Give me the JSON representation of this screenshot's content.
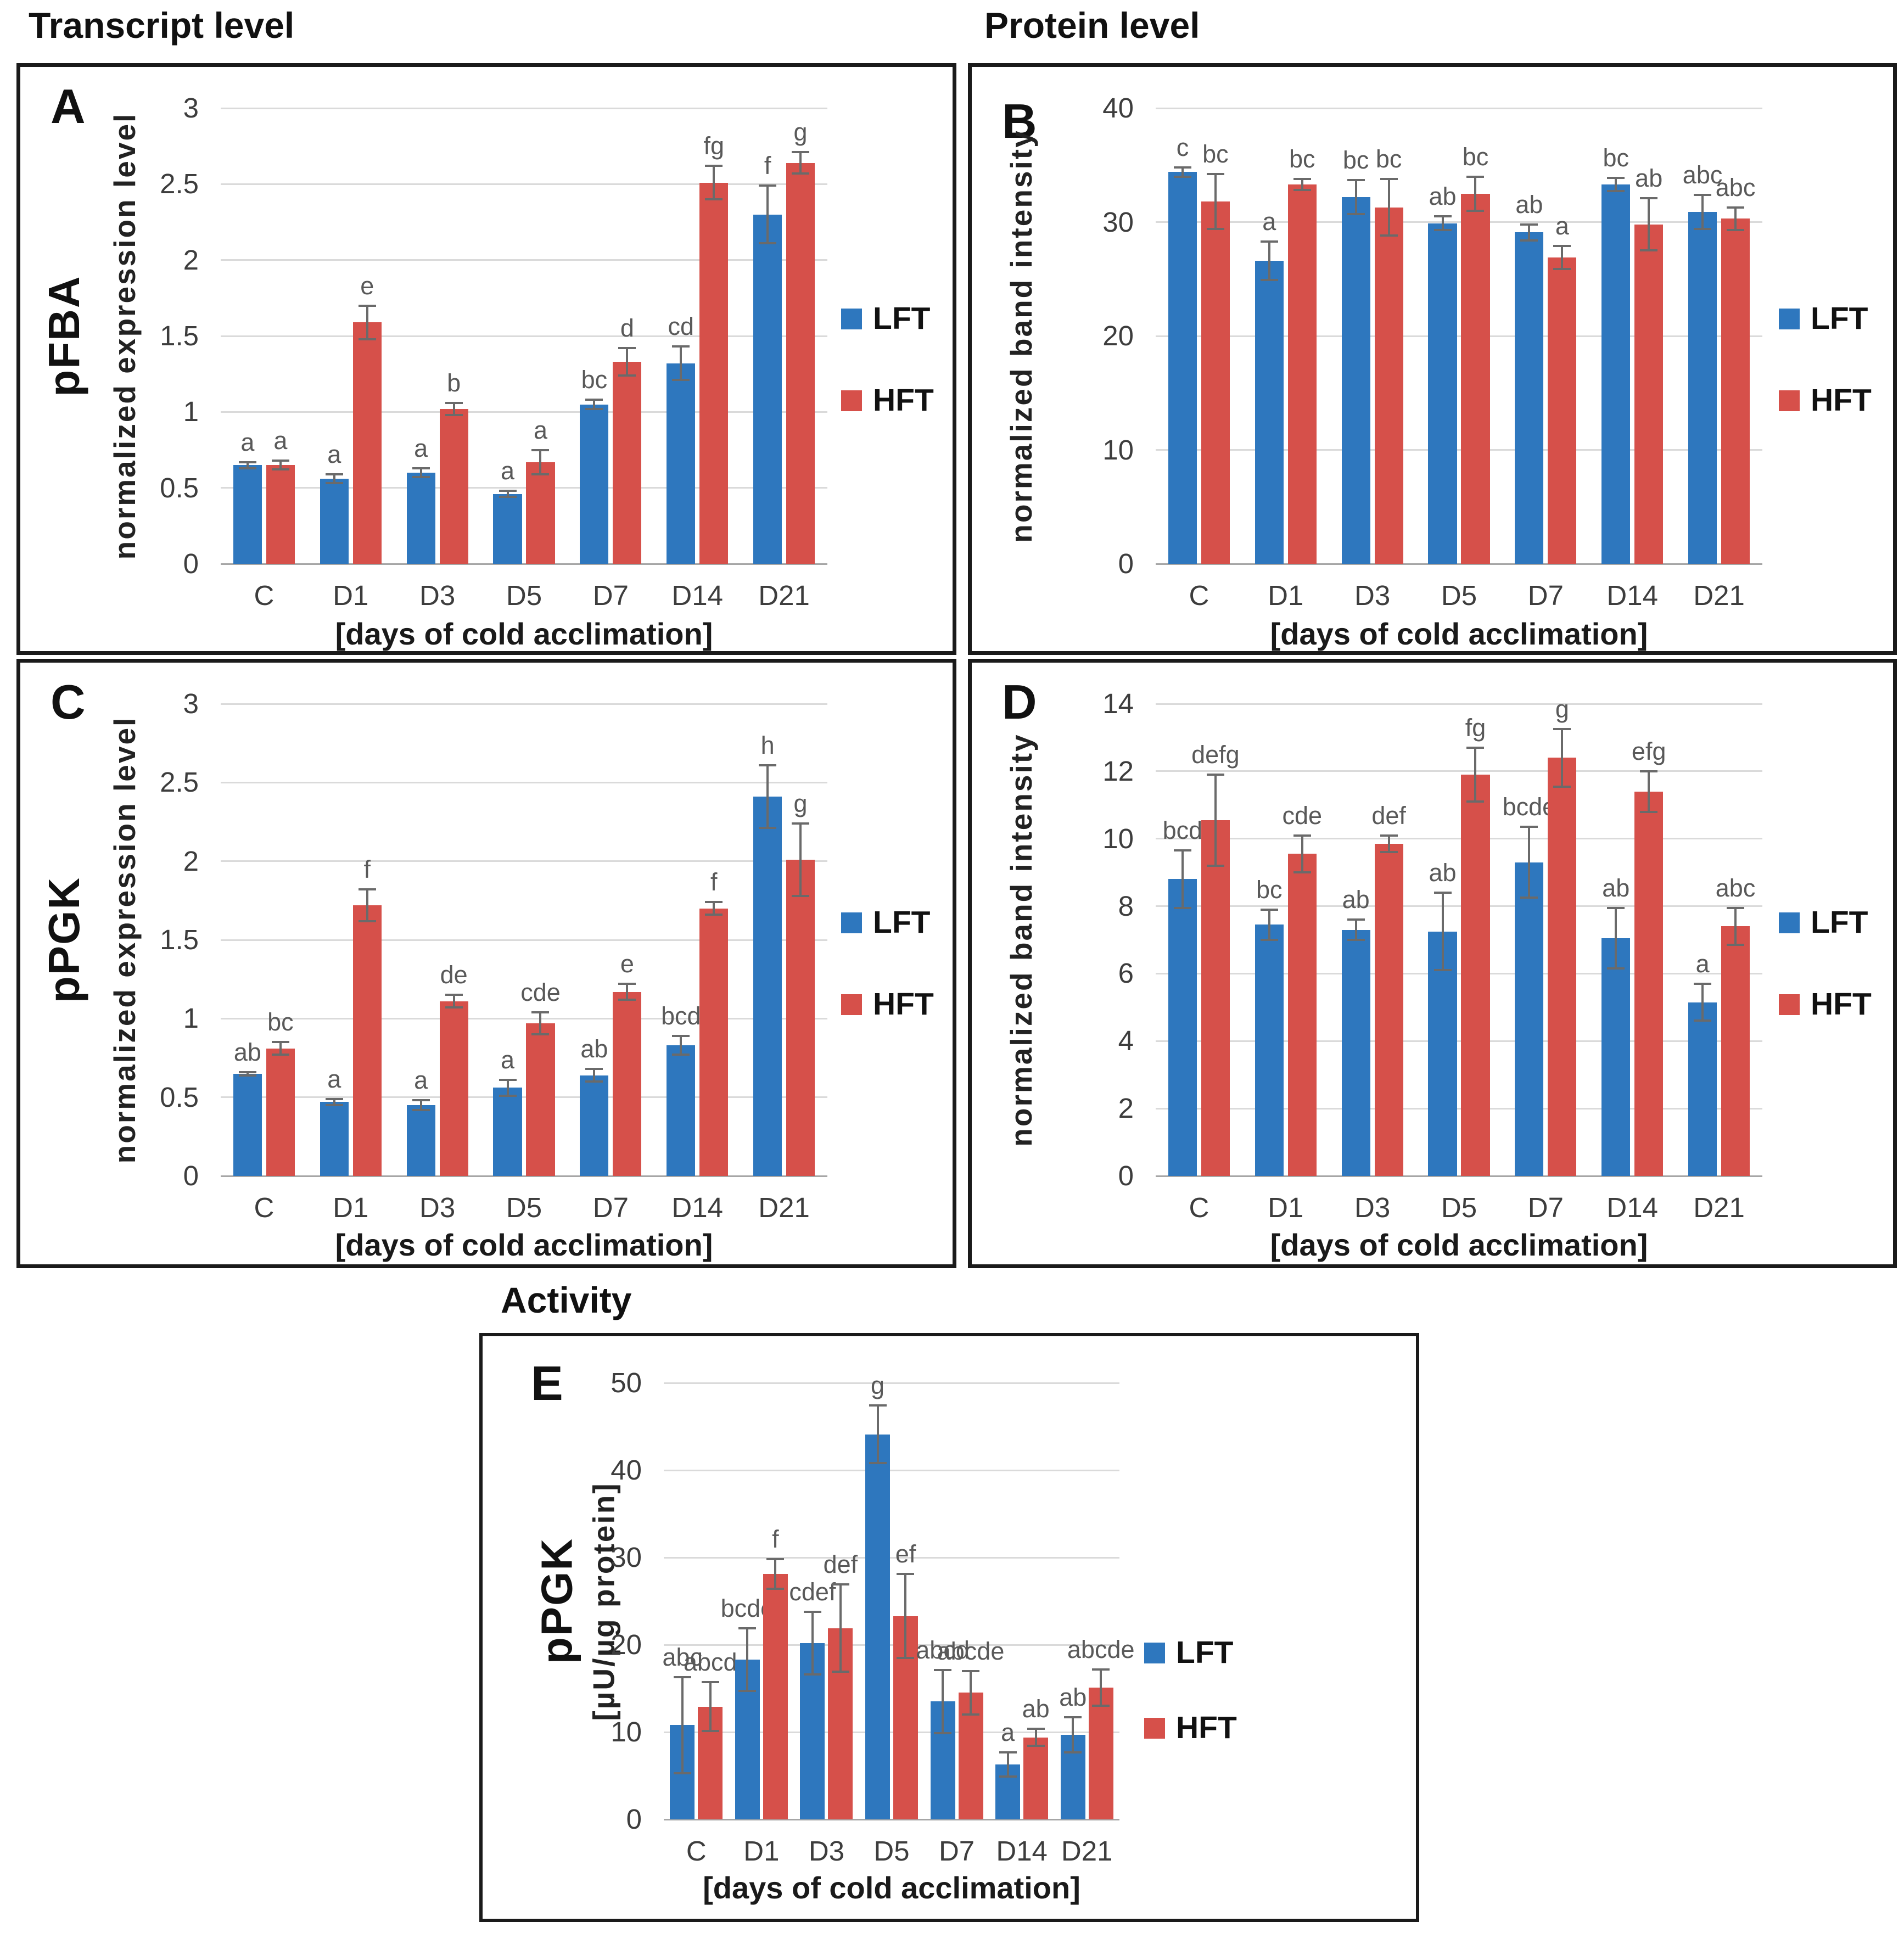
{
  "section_titles": {
    "transcript": "Transcript level",
    "protein": "Protein level",
    "activity": "Activity"
  },
  "legend": {
    "lft": "LFT",
    "hft": "HFT"
  },
  "colors": {
    "lft": "#2e77be",
    "hft": "#d6504a",
    "grid": "#dadada",
    "axis_line": "#a6a6a6",
    "error_bar": "#6a6a6a",
    "letters": "#595959",
    "tick_text": "#3d3d3d"
  },
  "xlabel": "[days of cold acclimation]",
  "chart_data": [
    {
      "panel_label": "A",
      "type": "bar",
      "group_label": "pFBA",
      "ylabel": "normalized expression level",
      "xlabel": "[days of cold acclimation]",
      "categories": [
        "C",
        "D1",
        "D3",
        "D5",
        "D7",
        "D14",
        "D21"
      ],
      "ylim": [
        0,
        3
      ],
      "yticks": [
        0,
        0.5,
        1,
        1.5,
        2,
        2.5,
        3
      ],
      "grid": true,
      "legend_position": "right",
      "bar_ratio": 0.33,
      "series": [
        {
          "name": "LFT",
          "values": [
            0.65,
            0.56,
            0.6,
            0.46,
            1.05,
            1.32,
            2.3
          ],
          "errors": [
            0.02,
            0.03,
            0.03,
            0.02,
            0.03,
            0.11,
            0.19
          ],
          "letters": [
            "a",
            "a",
            "a",
            "a",
            "bc",
            "cd",
            "f"
          ]
        },
        {
          "name": "HFT",
          "values": [
            0.65,
            1.59,
            1.02,
            0.67,
            1.33,
            2.51,
            2.64
          ],
          "errors": [
            0.03,
            0.11,
            0.04,
            0.08,
            0.09,
            0.11,
            0.07
          ],
          "letters": [
            "a",
            "e",
            "b",
            "a",
            "d",
            "fg",
            "g"
          ]
        }
      ]
    },
    {
      "panel_label": "B",
      "type": "bar",
      "group_label": "",
      "ylabel": "normalized band intensity",
      "xlabel": "[days of cold acclimation]",
      "categories": [
        "C",
        "D1",
        "D3",
        "D5",
        "D7",
        "D14",
        "D21"
      ],
      "ylim": [
        0,
        40
      ],
      "yticks": [
        0,
        10,
        20,
        30,
        40
      ],
      "grid": true,
      "legend_position": "right",
      "bar_ratio": 0.33,
      "series": [
        {
          "name": "LFT",
          "values": [
            34.4,
            26.6,
            32.2,
            29.9,
            29.1,
            33.3,
            30.9
          ],
          "errors": [
            0.4,
            1.7,
            1.5,
            0.6,
            0.7,
            0.6,
            1.5
          ],
          "letters": [
            "c",
            "a",
            "bc",
            "ab",
            "ab",
            "bc",
            "abc"
          ]
        },
        {
          "name": "HFT",
          "values": [
            31.8,
            33.3,
            31.3,
            32.5,
            26.9,
            29.8,
            30.3
          ],
          "errors": [
            2.4,
            0.5,
            2.5,
            1.5,
            1.0,
            2.3,
            1.0
          ],
          "letters": [
            "bc",
            "bc",
            "bc",
            "bc",
            "a",
            "ab",
            "abc"
          ]
        }
      ]
    },
    {
      "panel_label": "C",
      "type": "bar",
      "group_label": "pPGK",
      "ylabel": "normalized expression level",
      "xlabel": "[days of cold acclimation]",
      "categories": [
        "C",
        "D1",
        "D3",
        "D5",
        "D7",
        "D14",
        "D21"
      ],
      "ylim": [
        0,
        3
      ],
      "yticks": [
        0,
        0.5,
        1,
        1.5,
        2,
        2.5,
        3
      ],
      "grid": true,
      "legend_position": "right",
      "bar_ratio": 0.33,
      "series": [
        {
          "name": "LFT",
          "values": [
            0.65,
            0.47,
            0.45,
            0.56,
            0.64,
            0.83,
            2.41
          ],
          "errors": [
            0.01,
            0.02,
            0.03,
            0.05,
            0.04,
            0.06,
            0.2
          ],
          "letters": [
            "ab",
            "a",
            "a",
            "a",
            "ab",
            "bcd",
            "h"
          ]
        },
        {
          "name": "HFT",
          "values": [
            0.81,
            1.72,
            1.11,
            0.97,
            1.17,
            1.7,
            2.01
          ],
          "errors": [
            0.04,
            0.1,
            0.04,
            0.07,
            0.05,
            0.04,
            0.23
          ],
          "letters": [
            "bc",
            "f",
            "de",
            "cde",
            "e",
            "f",
            "g"
          ]
        }
      ]
    },
    {
      "panel_label": "D",
      "type": "bar",
      "group_label": "",
      "ylabel": "normalized band intensity",
      "xlabel": "[days of cold acclimation]",
      "categories": [
        "C",
        "D1",
        "D3",
        "D5",
        "D7",
        "D14",
        "D21"
      ],
      "ylim": [
        0,
        14
      ],
      "yticks": [
        0,
        2,
        4,
        6,
        8,
        10,
        12,
        14
      ],
      "grid": true,
      "legend_position": "right",
      "bar_ratio": 0.33,
      "series": [
        {
          "name": "LFT",
          "values": [
            8.8,
            7.45,
            7.3,
            7.25,
            9.3,
            7.05,
            5.15
          ],
          "errors": [
            0.85,
            0.45,
            0.3,
            1.15,
            1.05,
            0.9,
            0.55
          ],
          "letters": [
            "bcd",
            "bc",
            "ab",
            "ab",
            "bcde",
            "ab",
            "a"
          ]
        },
        {
          "name": "HFT",
          "values": [
            10.55,
            9.55,
            9.85,
            11.9,
            12.4,
            11.4,
            7.4
          ],
          "errors": [
            1.35,
            0.55,
            0.25,
            0.8,
            0.85,
            0.6,
            0.55
          ],
          "letters": [
            "defg",
            "cde",
            "def",
            "fg",
            "g",
            "efg",
            "abc"
          ]
        }
      ]
    },
    {
      "panel_label": "E",
      "type": "bar",
      "group_label": "pPGK",
      "ylabel": "[µU/µg protein]",
      "xlabel": "[days of cold acclimation]",
      "categories": [
        "C",
        "D1",
        "D3",
        "D5",
        "D7",
        "D14",
        "D21"
      ],
      "ylim": [
        0,
        50
      ],
      "yticks": [
        0,
        10,
        20,
        30,
        40,
        50
      ],
      "grid": true,
      "legend_position": "right",
      "bar_ratio": 0.38,
      "series": [
        {
          "name": "LFT",
          "values": [
            10.8,
            18.3,
            20.2,
            44.1,
            13.5,
            6.3,
            9.7
          ],
          "errors": [
            5.5,
            3.6,
            3.6,
            3.3,
            3.6,
            1.4,
            2.0
          ],
          "letters": [
            "abc",
            "bcde",
            "cdef",
            "g",
            "abcd",
            "a",
            "ab"
          ]
        },
        {
          "name": "HFT",
          "values": [
            12.9,
            28.1,
            21.9,
            23.3,
            14.5,
            9.4,
            15.1
          ],
          "errors": [
            2.8,
            1.7,
            5.0,
            4.8,
            2.5,
            1.0,
            2.1
          ],
          "letters": [
            "abcd",
            "f",
            "def",
            "ef",
            "abcde",
            "ab",
            "abcde"
          ]
        }
      ]
    }
  ]
}
